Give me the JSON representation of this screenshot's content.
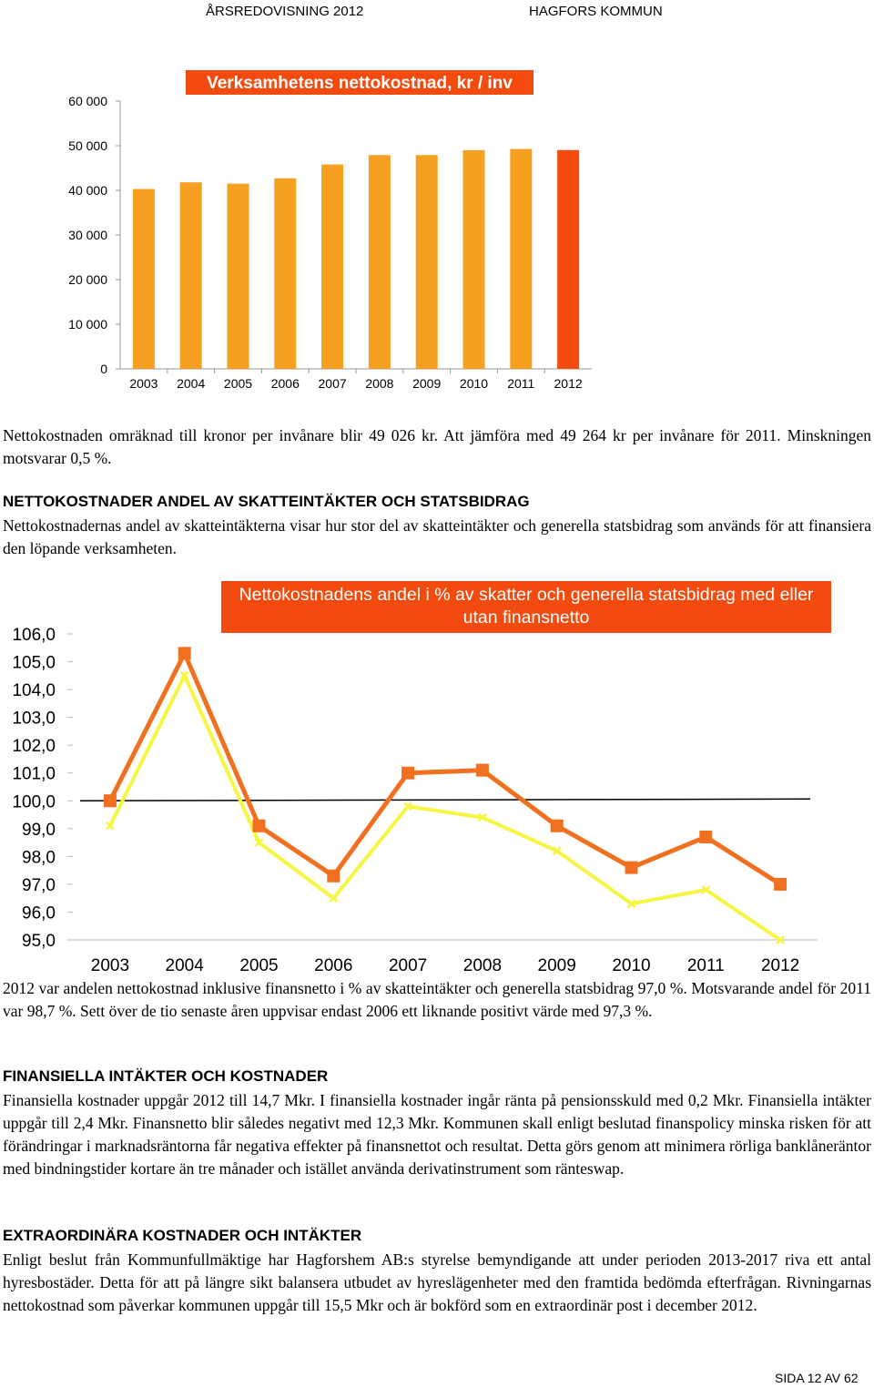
{
  "header": {
    "left": "ÅRSREDOVISNING 2012",
    "right": "HAGFORS KOMMUN"
  },
  "paragraphs": {
    "p1": "Nettokostnaden omräknad till kronor per invånare blir 49 026 kr. Att jämföra med 49 264 kr per invånare för 2011. Minskningen motsvarar 0,5 %.",
    "p2": "Nettokostnadernas andel av skatteintäkterna visar hur stor del av skatteintäkter och generella statsbidrag som används för att finansiera den löpande verksamheten.",
    "p3": "2012 var andelen nettokostnad inklusive finansnetto i % av skatteintäkter och generella statsbidrag 97,0 %. Motsvarande andel för 2011 var 98,7 %. Sett över de tio senaste åren uppvisar endast 2006 ett liknande positivt värde med 97,3 %.",
    "p4": "Finansiella kostnader uppgår 2012 till 14,7 Mkr. I finansiella kostnader ingår ränta på pensionsskuld med 0,2 Mkr. Finansiella intäkter uppgår till 2,4 Mkr. Finansnetto blir således negativt med 12,3 Mkr. Kommunen skall enligt beslutad finanspolicy minska risken för att förändringar i marknadsräntorna får negativa effekter på finansnettot och resultat. Detta görs genom att minimera rörliga banklåneräntor med bindningstider kortare än tre månader och istället använda derivatinstrument som ränteswap.",
    "p5": "Enligt beslut från Kommunfullmäktige har Hagforshem AB:s styrelse bemyndigande att under perioden 2013-2017 riva ett antal hyresbostäder. Detta för att på längre sikt balansera utbudet av hyreslägenheter med den framtida bedömda efterfrågan. Rivningarnas nettokostnad som påverkar kommunen uppgår till 15,5 Mkr och är bokförd som en extraordinär post i december 2012."
  },
  "headings": {
    "h1": "NETTOKOSTNADER ANDEL AV SKATTEINTÄKTER OCH STATSBIDRAG",
    "h2": "FINANSIELLA INTÄKTER OCH KOSTNADER",
    "h3": "EXTRAORDINÄRA KOSTNADER OCH INTÄKTER"
  },
  "footer": {
    "page": "SIDA 12 AV 62"
  },
  "colors": {
    "bar": "#f5a021",
    "bar_highlight": "#f24a0f",
    "title_bg": "#f24a0f",
    "line_with": "#f07020",
    "line_without": "#f5f542",
    "reference": "#000000"
  },
  "chart_data": [
    {
      "type": "bar",
      "title": "Verksamhetens nettokostnad, kr / inv",
      "categories": [
        "2003",
        "2004",
        "2005",
        "2006",
        "2007",
        "2008",
        "2009",
        "2010",
        "2011",
        "2012"
      ],
      "values": [
        40300,
        41800,
        41500,
        42700,
        45800,
        47900,
        47900,
        49000,
        49264,
        49026
      ],
      "highlight_index": 9,
      "ylim": [
        0,
        60000
      ],
      "yticks": [
        "0",
        "10 000",
        "20 000",
        "30 000",
        "40 000",
        "50 000",
        "60 000"
      ],
      "xlabel": "",
      "ylabel": "",
      "grid": false
    },
    {
      "type": "line",
      "title": "Nettokostnadens andel i % av skatter och generella statsbidrag med eller utan finansnetto",
      "categories": [
        "2003",
        "2004",
        "2005",
        "2006",
        "2007",
        "2008",
        "2009",
        "2010",
        "2011",
        "2012"
      ],
      "series": [
        {
          "marker": "square",
          "values": [
            100.0,
            105.3,
            99.1,
            97.3,
            101.0,
            101.1,
            99.1,
            97.6,
            98.7,
            97.0
          ]
        },
        {
          "marker": "cross",
          "values": [
            99.1,
            104.5,
            98.5,
            96.5,
            99.8,
            99.4,
            98.2,
            96.3,
            96.8,
            95.0
          ]
        }
      ],
      "reference_value": 100.0,
      "ylim": [
        95,
        106
      ],
      "yticks": [
        "95,0",
        "96,0",
        "97,0",
        "98,0",
        "99,0",
        "100,0",
        "101,0",
        "102,0",
        "103,0",
        "104,0",
        "105,0",
        "106,0"
      ],
      "xlabel": "",
      "ylabel": "",
      "grid": false,
      "legend": "none"
    }
  ]
}
